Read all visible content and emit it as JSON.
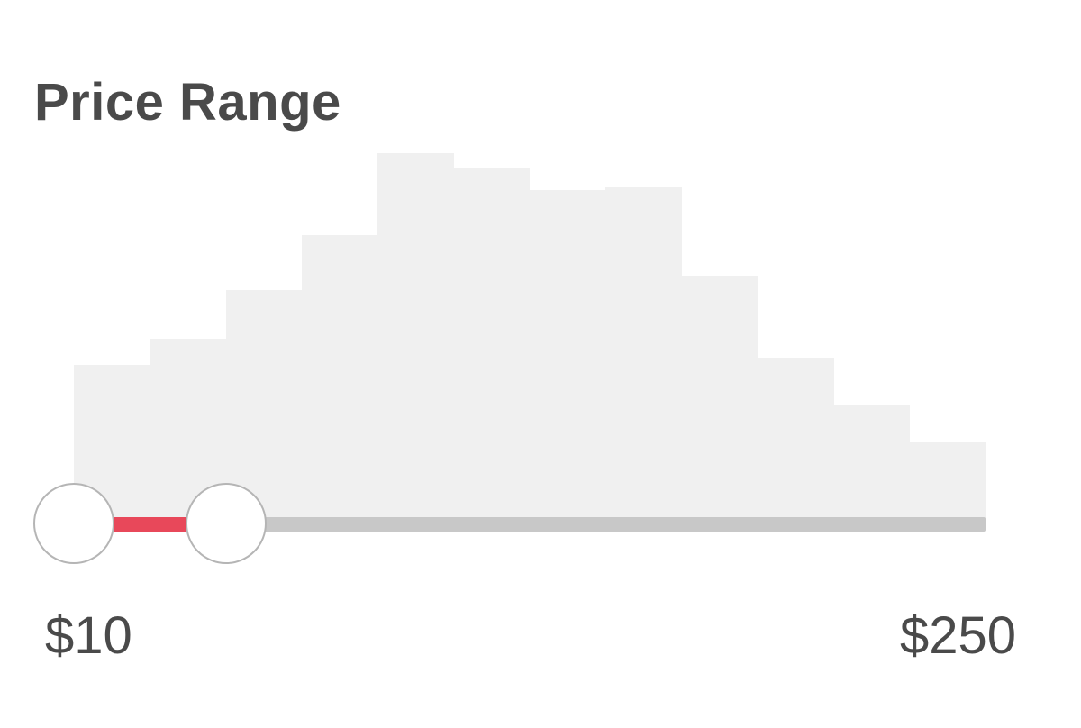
{
  "price_filter": {
    "title": "Price Range",
    "min_label": "$10",
    "max_label": "$250",
    "min": 10,
    "max": 250,
    "selected_low": 10,
    "selected_high": 50,
    "accent_color": "#e8485a",
    "track_color": "#c8c8c8",
    "histogram_color": "#f0f0f0",
    "histogram_relative_heights": [
      0.43,
      0.5,
      0.63,
      0.78,
      1.0,
      0.96,
      0.9,
      0.91,
      0.67,
      0.45,
      0.32,
      0.22
    ]
  }
}
